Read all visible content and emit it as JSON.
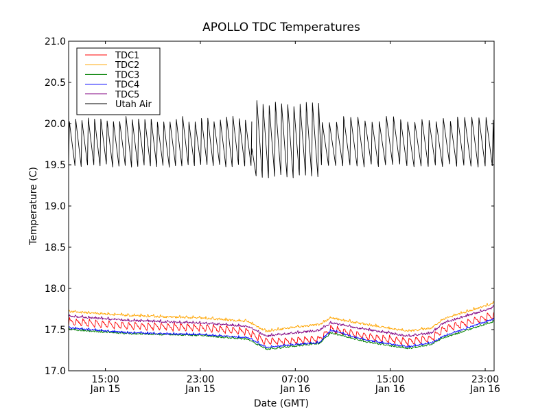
{
  "chart_data": {
    "type": "line",
    "title": "APOLLO TDC Temperatures",
    "xlabel": "Date (GMT)",
    "ylabel": "Temperature (C)",
    "x_units": "hours since 00:00 Jan 15 (GMT)",
    "xlim": [
      11.9,
      47.75
    ],
    "ylim": [
      17.0,
      21.0
    ],
    "grid": false,
    "legend_position": "top-left",
    "xticks": [
      {
        "value": 15,
        "time": "15:00",
        "date": "Jan 15"
      },
      {
        "value": 23,
        "time": "23:00",
        "date": "Jan 15"
      },
      {
        "value": 31,
        "time": "07:00",
        "date": "Jan 16"
      },
      {
        "value": 39,
        "time": "15:00",
        "date": "Jan 16"
      },
      {
        "value": 47,
        "time": "23:00",
        "date": "Jan 16"
      }
    ],
    "yticks": [
      {
        "value": 17.0,
        "label": "17.0"
      },
      {
        "value": 17.5,
        "label": "17.5"
      },
      {
        "value": 18.0,
        "label": "18.0"
      },
      {
        "value": 18.5,
        "label": "18.5"
      },
      {
        "value": 19.0,
        "label": "19.0"
      },
      {
        "value": 19.5,
        "label": "19.5"
      },
      {
        "value": 20.0,
        "label": "20.0"
      },
      {
        "value": 20.5,
        "label": "20.5"
      },
      {
        "value": 21.0,
        "label": "21.0"
      }
    ],
    "series": [
      {
        "name": "TDC1",
        "color": "#ff0000",
        "baseline": [
          [
            11.9,
            17.64
          ],
          [
            17,
            17.59
          ],
          [
            23,
            17.57
          ],
          [
            27,
            17.52
          ],
          [
            28.5,
            17.4
          ],
          [
            31,
            17.41
          ],
          [
            33,
            17.43
          ],
          [
            34,
            17.55
          ],
          [
            37,
            17.46
          ],
          [
            40.5,
            17.4
          ],
          [
            42.5,
            17.44
          ],
          [
            43.5,
            17.55
          ],
          [
            47.75,
            17.72
          ]
        ],
        "oscillation": {
          "period_h": 0.55,
          "amplitude": 0.09,
          "shape": "sawtooth"
        }
      },
      {
        "name": "TDC2",
        "color": "#ffa500",
        "baseline": [
          [
            11.9,
            17.72
          ],
          [
            17,
            17.67
          ],
          [
            23,
            17.64
          ],
          [
            27,
            17.6
          ],
          [
            28.5,
            17.48
          ],
          [
            31,
            17.53
          ],
          [
            33,
            17.56
          ],
          [
            34,
            17.64
          ],
          [
            37,
            17.56
          ],
          [
            40.5,
            17.48
          ],
          [
            42.5,
            17.52
          ],
          [
            43.5,
            17.63
          ],
          [
            47.75,
            17.82
          ]
        ],
        "oscillation": {
          "period_h": 0.55,
          "amplitude": 0.015,
          "shape": "noise"
        }
      },
      {
        "name": "TDC3",
        "color": "#008000",
        "baseline": [
          [
            11.9,
            17.5
          ],
          [
            17,
            17.45
          ],
          [
            23,
            17.43
          ],
          [
            27,
            17.38
          ],
          [
            28.6,
            17.26
          ],
          [
            31,
            17.3
          ],
          [
            33,
            17.33
          ],
          [
            34,
            17.46
          ],
          [
            37,
            17.35
          ],
          [
            40.5,
            17.27
          ],
          [
            42.5,
            17.32
          ],
          [
            43.5,
            17.4
          ],
          [
            47.75,
            17.6
          ]
        ],
        "oscillation": {
          "period_h": 0.55,
          "amplitude": 0.012,
          "shape": "noise"
        }
      },
      {
        "name": "TDC4",
        "color": "#0000ff",
        "baseline": [
          [
            11.9,
            17.52
          ],
          [
            17,
            17.46
          ],
          [
            23,
            17.44
          ],
          [
            27,
            17.4
          ],
          [
            28.6,
            17.28
          ],
          [
            31,
            17.32
          ],
          [
            33,
            17.34
          ],
          [
            34,
            17.49
          ],
          [
            37,
            17.37
          ],
          [
            40.5,
            17.29
          ],
          [
            42.5,
            17.34
          ],
          [
            43.5,
            17.42
          ],
          [
            47.75,
            17.63
          ]
        ],
        "oscillation": {
          "period_h": 0.55,
          "amplitude": 0.012,
          "shape": "noise"
        }
      },
      {
        "name": "TDC5",
        "color": "#800080",
        "baseline": [
          [
            11.9,
            17.66
          ],
          [
            17,
            17.61
          ],
          [
            23,
            17.58
          ],
          [
            27,
            17.54
          ],
          [
            28.5,
            17.42
          ],
          [
            31,
            17.46
          ],
          [
            33,
            17.49
          ],
          [
            34,
            17.58
          ],
          [
            37,
            17.5
          ],
          [
            40.5,
            17.42
          ],
          [
            42.5,
            17.46
          ],
          [
            43.5,
            17.58
          ],
          [
            47.75,
            17.77
          ]
        ],
        "oscillation": {
          "period_h": 0.55,
          "amplitude": 0.015,
          "shape": "noise"
        }
      },
      {
        "name": "Utah Air",
        "color": "#000000",
        "cycles": [
          {
            "from": 11.9,
            "to": 27.3,
            "period_h": 0.53,
            "peak": 20.05,
            "trough": 19.49
          },
          {
            "from": 27.3,
            "to": 27.7,
            "period_h": 0.4,
            "peak": 19.72,
            "trough": 19.6
          },
          {
            "from": 27.7,
            "to": 33.2,
            "period_h": 0.52,
            "peak": 20.24,
            "trough": 19.36
          },
          {
            "from": 33.2,
            "to": 47.75,
            "period_h": 0.6,
            "peak": 20.05,
            "trough": 19.49
          }
        ]
      }
    ]
  }
}
